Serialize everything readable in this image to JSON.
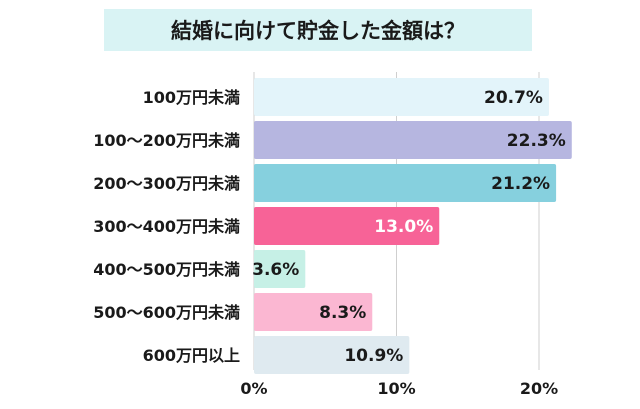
{
  "chart_data": {
    "type": "bar",
    "orientation": "horizontal",
    "title": "結婚に向けて貯金した金額は？",
    "categories": [
      "100万円未満",
      "100〜200万円未満",
      "200〜300万円未満",
      "300〜400万円未満",
      "400〜500万円未満",
      "500〜600万円未満",
      "600万円以上"
    ],
    "values": [
      20.7,
      22.3,
      21.2,
      13.0,
      3.6,
      8.3,
      10.9
    ],
    "value_labels": [
      "20.7%",
      "22.3%",
      "21.2%",
      "13.0%",
      "3.6%",
      "8.3%",
      "10.9%"
    ],
    "colors": [
      "#e3f4fa",
      "#b6b6e0",
      "#86d0de",
      "#f76397",
      "#c6f0e6",
      "#fbb7d2",
      "#dfeaf0"
    ],
    "label_colors": [
      "#1a1a1a",
      "#1a1a1a",
      "#1a1a1a",
      "#ffffff",
      "#1a1a1a",
      "#1a1a1a",
      "#1a1a1a"
    ],
    "xlim": [
      0,
      23
    ],
    "ticks": [
      0,
      10,
      20
    ],
    "tick_labels": [
      "0%",
      "10%",
      "20%"
    ],
    "grid": true,
    "xlabel": "",
    "ylabel": ""
  }
}
